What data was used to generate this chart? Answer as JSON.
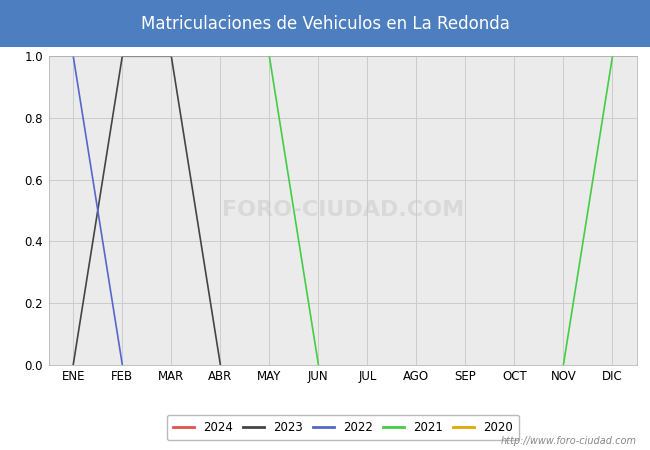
{
  "title": "Matriculaciones de Vehiculos en La Redonda",
  "title_bg_color": "#4d7ebf",
  "title_text_color": "#ffffff",
  "months": [
    "ENE",
    "FEB",
    "MAR",
    "ABR",
    "MAY",
    "JUN",
    "JUL",
    "AGO",
    "SEP",
    "OCT",
    "NOV",
    "DIC"
  ],
  "series": {
    "2024": {
      "color": "#e05050",
      "values": [
        null,
        null,
        null,
        null,
        null,
        null,
        null,
        null,
        null,
        null,
        null,
        null
      ]
    },
    "2023": {
      "color": "#444444",
      "values": [
        0.0,
        1.0,
        1.0,
        0.0,
        null,
        null,
        null,
        null,
        null,
        null,
        null,
        null
      ]
    },
    "2022": {
      "color": "#5566cc",
      "values": [
        1.0,
        0.0,
        null,
        null,
        null,
        null,
        null,
        null,
        null,
        null,
        null,
        null
      ]
    },
    "2021": {
      "color": "#44cc44",
      "values": [
        null,
        null,
        null,
        null,
        1.0,
        0.0,
        null,
        null,
        null,
        null,
        0.0,
        1.0
      ]
    },
    "2020": {
      "color": "#ddaa00",
      "values": [
        null,
        null,
        null,
        null,
        null,
        null,
        null,
        null,
        null,
        null,
        null,
        null
      ]
    }
  },
  "ylim": [
    0.0,
    1.0
  ],
  "yticks": [
    0.0,
    0.2,
    0.4,
    0.6,
    0.8,
    1.0
  ],
  "grid_color": "#cccccc",
  "plot_bg_color": "#ebebeb",
  "outer_bg_color": "#ffffff",
  "legend_order": [
    "2024",
    "2023",
    "2022",
    "2021",
    "2020"
  ],
  "watermark_plot": "FORO-CIUDAD.COM",
  "watermark_url": "http://www.foro-ciudad.com",
  "fig_width": 6.5,
  "fig_height": 4.5,
  "dpi": 100
}
